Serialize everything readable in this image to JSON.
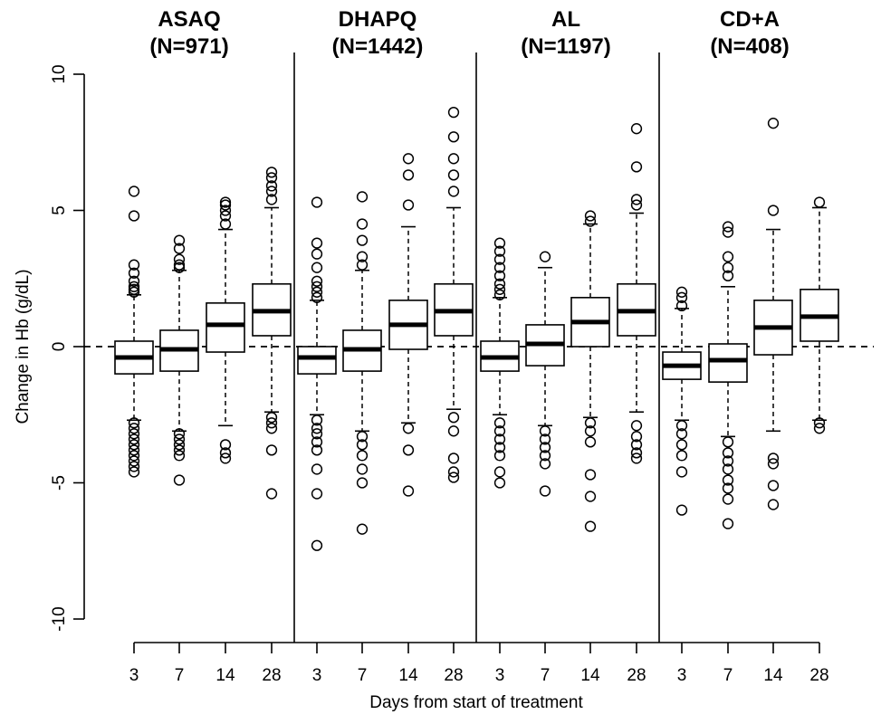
{
  "chart_data": {
    "type": "box",
    "title": "",
    "xlabel": "Days from start of treatment",
    "ylabel": "Change in Hb (g/dL)",
    "ylim": [
      -10,
      10
    ],
    "yticks": [
      -10,
      -5,
      0,
      5,
      10
    ],
    "reference_line": {
      "y": 0,
      "style": "dashed"
    },
    "categories": [
      "3",
      "7",
      "14",
      "28"
    ],
    "groups": [
      {
        "name": "ASAQ",
        "n_label": "(N=971)",
        "boxes": [
          {
            "day": "3",
            "q1": -1.0,
            "median": -0.4,
            "q3": 0.2,
            "whisker_low": -2.7,
            "whisker_high": 1.9,
            "outliers": [
              5.7,
              4.8,
              3.0,
              2.7,
              2.4,
              2.2,
              2.1,
              2.0,
              -2.8,
              -3.0,
              -3.2,
              -3.4,
              -3.6,
              -3.8,
              -4.0,
              -4.2,
              -4.4,
              -4.6
            ]
          },
          {
            "day": "7",
            "q1": -0.9,
            "median": -0.1,
            "q3": 0.6,
            "whisker_low": -3.1,
            "whisker_high": 2.8,
            "outliers": [
              3.9,
              3.6,
              3.2,
              3.0,
              2.9,
              -3.2,
              -3.4,
              -3.6,
              -3.8,
              -4.0,
              -4.9
            ]
          },
          {
            "day": "14",
            "q1": -0.2,
            "median": 0.8,
            "q3": 1.6,
            "whisker_low": -2.9,
            "whisker_high": 4.3,
            "outliers": [
              5.3,
              5.2,
              5.0,
              4.8,
              4.5,
              -3.6,
              -3.9,
              -4.1
            ]
          },
          {
            "day": "28",
            "q1": 0.4,
            "median": 1.3,
            "q3": 2.3,
            "whisker_low": -2.4,
            "whisker_high": 5.1,
            "outliers": [
              6.4,
              6.2,
              5.9,
              5.7,
              5.4,
              -2.6,
              -2.8,
              -3.0,
              -3.8,
              -5.4
            ]
          }
        ]
      },
      {
        "name": "DHAPQ",
        "n_label": "(N=1442)",
        "boxes": [
          {
            "day": "3",
            "q1": -1.0,
            "median": -0.4,
            "q3": 0.0,
            "whisker_low": -2.5,
            "whisker_high": 1.7,
            "outliers": [
              5.3,
              3.8,
              3.4,
              2.9,
              2.4,
              2.2,
              2.0,
              1.8,
              -2.7,
              -3.0,
              -3.2,
              -3.5,
              -3.8,
              -4.5,
              -5.4,
              -7.3
            ]
          },
          {
            "day": "7",
            "q1": -0.9,
            "median": -0.1,
            "q3": 0.6,
            "whisker_low": -3.1,
            "whisker_high": 2.8,
            "outliers": [
              5.5,
              4.5,
              3.9,
              3.3,
              3.0,
              -3.3,
              -3.6,
              -4.0,
              -4.5,
              -5.0,
              -6.7
            ]
          },
          {
            "day": "14",
            "q1": -0.1,
            "median": 0.8,
            "q3": 1.7,
            "whisker_low": -2.8,
            "whisker_high": 4.4,
            "outliers": [
              6.9,
              6.3,
              5.2,
              -3.0,
              -3.8,
              -5.3
            ]
          },
          {
            "day": "28",
            "q1": 0.4,
            "median": 1.3,
            "q3": 2.3,
            "whisker_low": -2.3,
            "whisker_high": 5.1,
            "outliers": [
              8.6,
              7.7,
              6.9,
              6.3,
              5.7,
              -2.6,
              -3.1,
              -4.1,
              -4.6,
              -4.8
            ]
          }
        ]
      },
      {
        "name": "AL",
        "n_label": "(N=1197)",
        "boxes": [
          {
            "day": "3",
            "q1": -0.9,
            "median": -0.4,
            "q3": 0.2,
            "whisker_low": -2.5,
            "whisker_high": 1.8,
            "outliers": [
              3.8,
              3.5,
              3.2,
              2.9,
              2.6,
              2.3,
              2.1,
              1.9,
              -2.8,
              -3.1,
              -3.4,
              -3.7,
              -4.0,
              -4.6,
              -5.0
            ]
          },
          {
            "day": "7",
            "q1": -0.7,
            "median": 0.1,
            "q3": 0.8,
            "whisker_low": -2.9,
            "whisker_high": 2.9,
            "outliers": [
              3.3,
              -3.1,
              -3.4,
              -3.7,
              -4.0,
              -4.3,
              -5.3
            ]
          },
          {
            "day": "14",
            "q1": 0.0,
            "median": 0.9,
            "q3": 1.8,
            "whisker_low": -2.6,
            "whisker_high": 4.5,
            "outliers": [
              4.8,
              4.6,
              -2.8,
              -3.1,
              -3.5,
              -4.7,
              -5.5,
              -6.6
            ]
          },
          {
            "day": "28",
            "q1": 0.4,
            "median": 1.3,
            "q3": 2.3,
            "whisker_low": -2.4,
            "whisker_high": 4.9,
            "outliers": [
              8.0,
              6.6,
              5.4,
              5.2,
              -2.9,
              -3.3,
              -3.6,
              -3.9,
              -4.1
            ]
          }
        ]
      },
      {
        "name": "CD+A",
        "n_label": "(N=408)",
        "boxes": [
          {
            "day": "3",
            "q1": -1.2,
            "median": -0.7,
            "q3": -0.2,
            "whisker_low": -2.7,
            "whisker_high": 1.4,
            "outliers": [
              2.0,
              1.8,
              1.5,
              -2.9,
              -3.2,
              -3.6,
              -4.0,
              -4.6,
              -6.0
            ]
          },
          {
            "day": "7",
            "q1": -1.3,
            "median": -0.5,
            "q3": 0.1,
            "whisker_low": -3.3,
            "whisker_high": 2.2,
            "outliers": [
              4.4,
              4.2,
              3.3,
              2.9,
              2.6,
              -3.5,
              -3.9,
              -4.2,
              -4.5,
              -4.9,
              -5.2,
              -5.6,
              -6.5
            ]
          },
          {
            "day": "14",
            "q1": -0.3,
            "median": 0.7,
            "q3": 1.7,
            "whisker_low": -3.1,
            "whisker_high": 4.3,
            "outliers": [
              8.2,
              5.0,
              -4.1,
              -4.3,
              -5.1,
              -5.8
            ]
          },
          {
            "day": "28",
            "q1": 0.2,
            "median": 1.1,
            "q3": 2.1,
            "whisker_low": -2.7,
            "whisker_high": 5.1,
            "outliers": [
              5.3,
              -2.8,
              -3.0
            ]
          }
        ]
      }
    ]
  }
}
